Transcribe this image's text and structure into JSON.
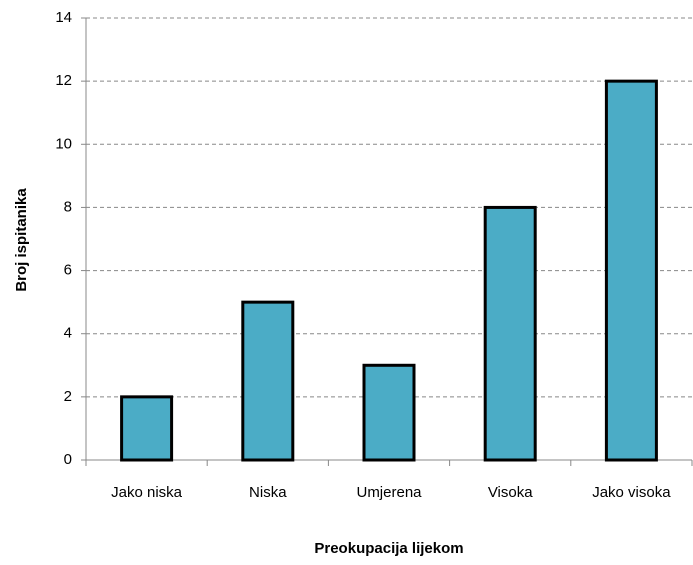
{
  "chart_data": {
    "type": "bar",
    "categories": [
      "Jako niska",
      "Niska",
      "Umjerena",
      "Visoka",
      "Jako visoka"
    ],
    "values": [
      2,
      5,
      3,
      8,
      12
    ],
    "color": "#4bacc6",
    "x_label": "Preokupacija lijekom",
    "y_label": "Broj ispitanika",
    "ylim": [
      0,
      14
    ],
    "yticks": [
      0,
      2,
      4,
      6,
      8,
      10,
      12,
      14
    ],
    "grid": true
  }
}
